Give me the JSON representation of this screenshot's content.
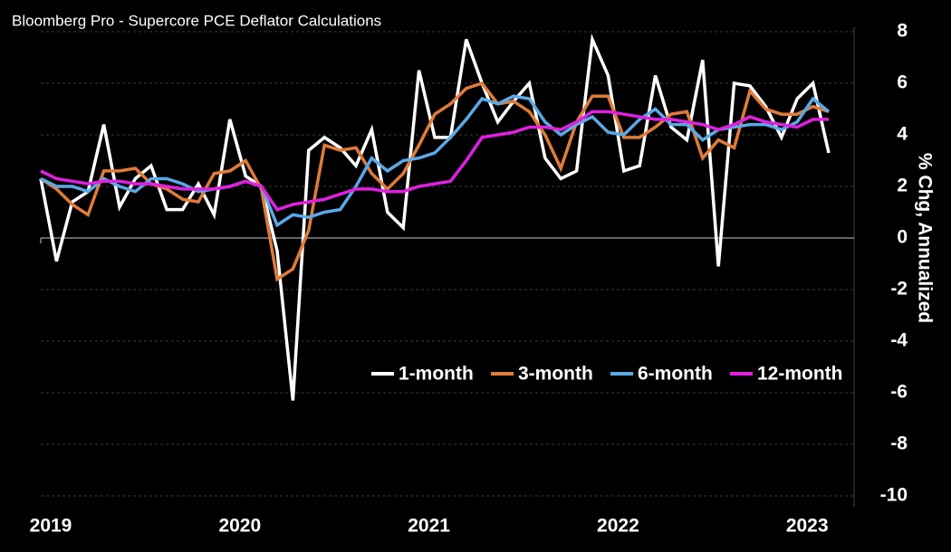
{
  "chart_data": {
    "type": "line",
    "title": "Bloomberg Pro - Supercore PCE Deflator Calculations",
    "y_label": "% Chg, Annualized",
    "categories": [
      "2019",
      null,
      null,
      null,
      null,
      null,
      null,
      null,
      null,
      null,
      null,
      null,
      "2020",
      null,
      null,
      null,
      null,
      null,
      null,
      null,
      null,
      null,
      null,
      null,
      "2021",
      null,
      null,
      null,
      null,
      null,
      null,
      null,
      null,
      null,
      null,
      null,
      "2022",
      null,
      null,
      null,
      null,
      null,
      null,
      null,
      null,
      null,
      null,
      null,
      "2023",
      null,
      null
    ],
    "series": [
      {
        "name": "1-month",
        "color": "#ffffff",
        "values": [
          2.3,
          -0.9,
          1.4,
          1.8,
          4.4,
          1.2,
          2.3,
          2.8,
          1.1,
          1.1,
          2.1,
          0.9,
          4.6,
          2.4,
          2.0,
          -0.5,
          -6.3,
          3.4,
          3.9,
          3.5,
          2.8,
          4.2,
          1.0,
          0.4,
          6.5,
          3.9,
          3.9,
          7.7,
          6.0,
          4.5,
          5.3,
          6.0,
          3.1,
          2.3,
          2.6,
          7.7,
          6.3,
          2.6,
          2.8,
          6.3,
          4.3,
          3.8,
          6.9,
          -1.1,
          6.0,
          5.9,
          5.1,
          3.9,
          5.4,
          6.0,
          3.3
        ]
      },
      {
        "name": "3-month",
        "color": "#e07b39",
        "values": [
          2.3,
          1.9,
          1.3,
          0.9,
          2.6,
          2.6,
          2.7,
          2.1,
          1.9,
          1.5,
          1.4,
          2.5,
          2.6,
          3.0,
          1.9,
          -1.6,
          -1.2,
          0.3,
          3.6,
          3.4,
          3.5,
          2.5,
          1.9,
          2.5,
          3.6,
          4.8,
          5.2,
          5.8,
          6.0,
          5.2,
          5.3,
          4.9,
          4.0,
          2.7,
          4.5,
          5.5,
          5.5,
          3.9,
          3.9,
          4.3,
          4.8,
          4.9,
          3.1,
          3.8,
          3.5,
          5.7,
          5.0,
          4.8,
          4.8,
          5.1,
          4.9
        ]
      },
      {
        "name": "6-month",
        "color": "#5aa9e6",
        "values": [
          2.3,
          2.0,
          2.0,
          1.8,
          2.3,
          2.0,
          1.8,
          2.3,
          2.3,
          2.1,
          1.8,
          1.9,
          2.0,
          2.2,
          2.0,
          0.5,
          0.9,
          0.8,
          1.0,
          1.1,
          2.0,
          3.1,
          2.6,
          3.0,
          3.1,
          3.3,
          3.9,
          4.6,
          5.4,
          5.2,
          5.5,
          5.4,
          4.5,
          4.0,
          4.4,
          4.7,
          4.1,
          4.0,
          4.6,
          5.0,
          4.4,
          4.4,
          3.8,
          4.2,
          4.3,
          4.4,
          4.4,
          4.2,
          4.5,
          5.4,
          4.9
        ]
      },
      {
        "name": "12-month",
        "color": "#e020e0",
        "values": [
          2.6,
          2.3,
          2.2,
          2.1,
          2.2,
          2.2,
          2.1,
          2.1,
          2.0,
          1.9,
          1.9,
          1.9,
          2.0,
          2.2,
          2.0,
          1.1,
          1.3,
          1.4,
          1.5,
          1.7,
          1.9,
          1.9,
          1.8,
          1.8,
          2.0,
          2.1,
          2.2,
          3.0,
          3.9,
          4.0,
          4.1,
          4.3,
          4.3,
          4.2,
          4.5,
          4.9,
          4.9,
          4.8,
          4.7,
          4.6,
          4.6,
          4.5,
          4.4,
          4.2,
          4.4,
          4.7,
          4.5,
          4.4,
          4.3,
          4.6,
          4.6
        ]
      }
    ],
    "ylim": [
      -10,
      8
    ],
    "yticks": [
      -10,
      -8,
      -6,
      -4,
      -2,
      0,
      2,
      4,
      6,
      8
    ],
    "grid": true
  }
}
